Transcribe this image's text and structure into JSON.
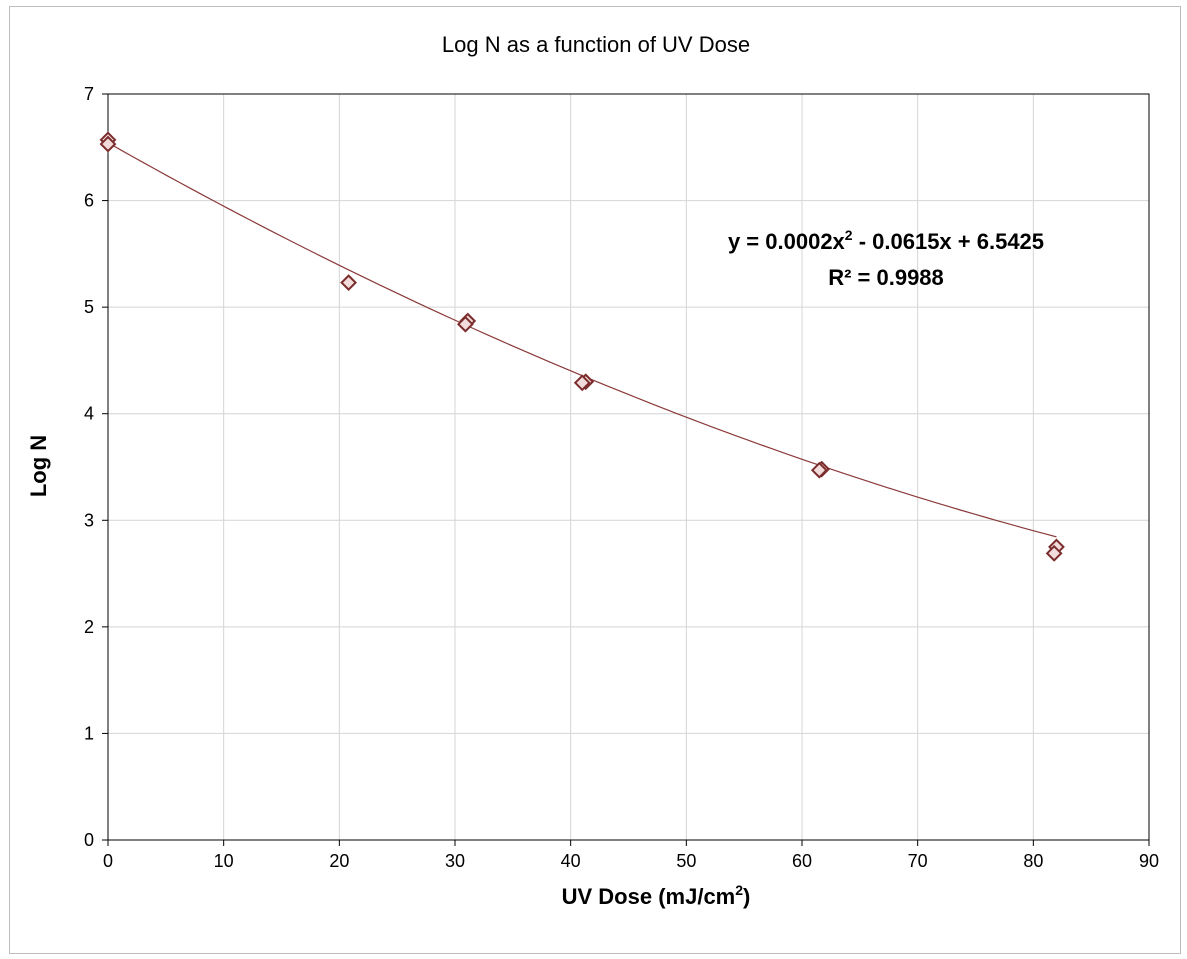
{
  "chart_data": {
    "type": "scatter",
    "title": "Log N as a function of UV Dose",
    "xlabel": "UV Dose (mJ/cm",
    "xlabel_superscript": "2",
    "xlabel_suffix": ")",
    "ylabel": "Log N",
    "xlim": [
      0,
      90
    ],
    "ylim": [
      0,
      7
    ],
    "x_ticks": [
      "0",
      "10",
      "20",
      "30",
      "40",
      "50",
      "60",
      "70",
      "80",
      "90"
    ],
    "y_ticks": [
      "0",
      "1",
      "2",
      "3",
      "4",
      "5",
      "6",
      "7"
    ],
    "grid": true,
    "marker": "diamond",
    "colors": {
      "marker_stroke": "#7b2c2c",
      "marker_fill": "#f2dcdb",
      "trendline": "#8b3a3a"
    },
    "series": [
      {
        "points": [
          {
            "x": 0,
            "y": 6.57
          },
          {
            "x": 0,
            "y": 6.53
          },
          {
            "x": 20.8,
            "y": 5.23
          },
          {
            "x": 31.1,
            "y": 4.87
          },
          {
            "x": 30.9,
            "y": 4.84
          },
          {
            "x": 41.3,
            "y": 4.3
          },
          {
            "x": 41.0,
            "y": 4.29
          },
          {
            "x": 61.7,
            "y": 3.48
          },
          {
            "x": 61.5,
            "y": 3.47
          },
          {
            "x": 82.0,
            "y": 2.75
          },
          {
            "x": 81.8,
            "y": 2.69
          }
        ]
      }
    ],
    "trendline": {
      "kind": "polynomial-2",
      "a": 0.0002,
      "b": -0.0615,
      "c": 6.5425,
      "x_range": [
        0,
        82
      ],
      "equation_prefix": "y = 0.0002x",
      "equation_sup": "2",
      "equation_suffix": " - 0.0615x + 6.5425",
      "r_squared": "R² = 0.9988"
    }
  }
}
